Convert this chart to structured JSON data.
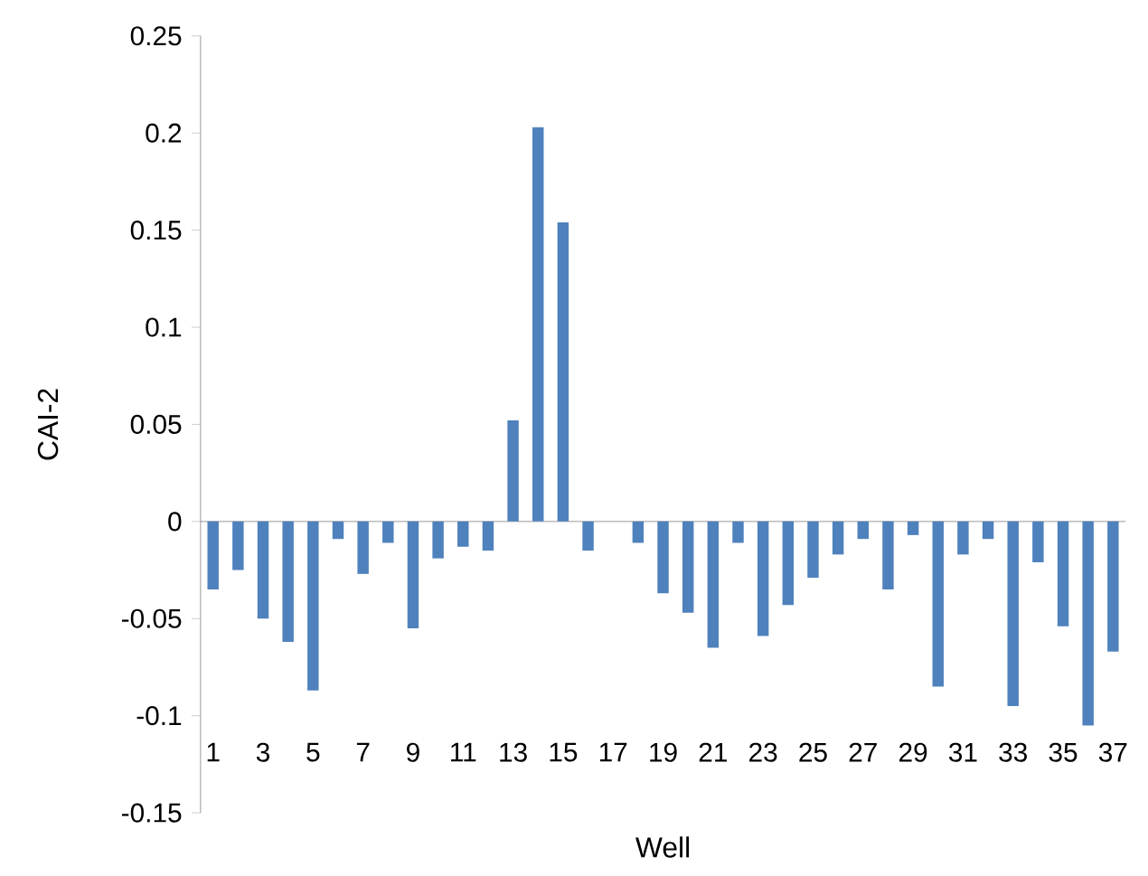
{
  "chart_data": {
    "type": "bar",
    "xlabel": "Well",
    "ylabel": "CAI-2",
    "categories": [
      "1",
      null,
      "3",
      null,
      "5",
      null,
      "7",
      null,
      "9",
      null,
      "11",
      null,
      "13",
      null,
      "15",
      null,
      "17",
      null,
      "19",
      null,
      "21",
      null,
      "23",
      null,
      "25",
      null,
      "27",
      null,
      "29",
      null,
      "31",
      null,
      "33",
      null,
      "35",
      null,
      "37"
    ],
    "values": [
      -0.035,
      -0.025,
      -0.05,
      -0.062,
      -0.087,
      -0.009,
      -0.027,
      -0.011,
      -0.055,
      -0.019,
      -0.013,
      -0.015,
      0.052,
      0.203,
      0.154,
      -0.015,
      0,
      -0.011,
      -0.037,
      -0.047,
      -0.065,
      -0.011,
      -0.059,
      -0.043,
      -0.029,
      -0.017,
      -0.009,
      -0.035,
      -0.007,
      -0.085,
      -0.017,
      -0.009,
      -0.095,
      -0.021,
      -0.054,
      -0.105,
      -0.067
    ],
    "color": "#4f81bd",
    "ylim": [
      -0.15,
      0.25
    ],
    "yticks": [
      -0.15,
      -0.1,
      -0.05,
      0,
      0.05,
      0.1,
      0.15,
      0.2,
      0.25
    ]
  }
}
